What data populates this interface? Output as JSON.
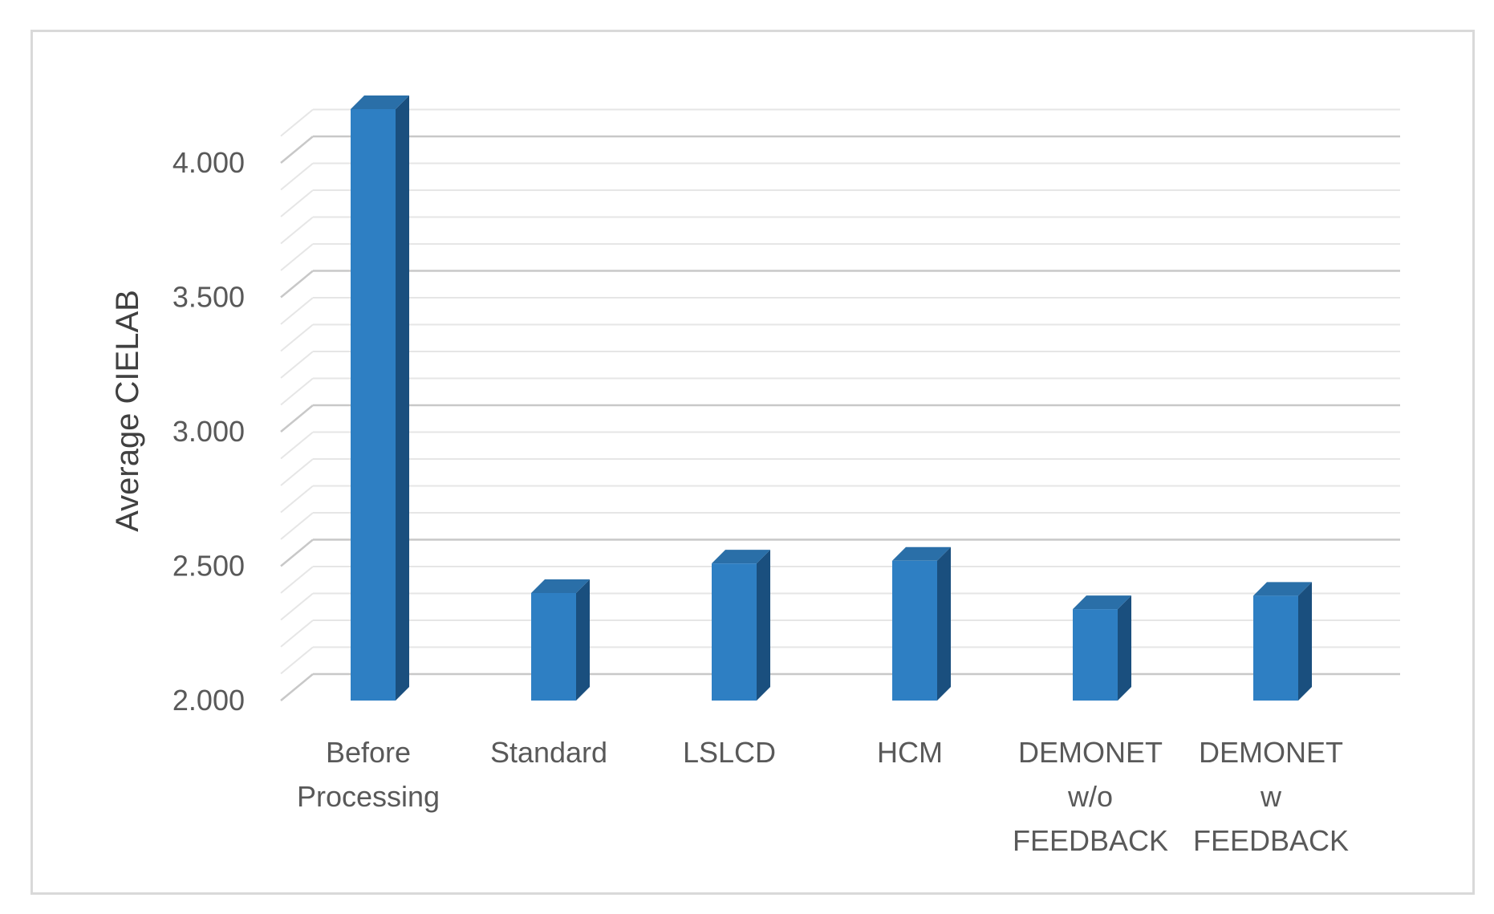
{
  "chart_data": {
    "type": "bar",
    "style": "3d-column",
    "title": "",
    "xlabel": "",
    "ylabel": "Average CIELAB",
    "ylim": [
      2.0,
      4.0
    ],
    "y_ticks": [
      "2.000",
      "2.500",
      "3.000",
      "3.500",
      "4.000"
    ],
    "grid": true,
    "legend": "none",
    "categories": [
      [
        "Before",
        "Processing"
      ],
      [
        "Standard"
      ],
      [
        "LSLCD"
      ],
      [
        "HCM"
      ],
      [
        "DEMONET",
        "w/o",
        "FEEDBACK"
      ],
      [
        "DEMONET",
        "w",
        "FEEDBACK"
      ]
    ],
    "values": [
      4.2,
      2.4,
      2.51,
      2.52,
      2.34,
      2.39
    ],
    "colors": {
      "bar_front": "#2E7FC3",
      "bar_side": "#1A4F7E",
      "bar_top": "#2A6FA8",
      "grid": "#d9d9d9"
    }
  }
}
